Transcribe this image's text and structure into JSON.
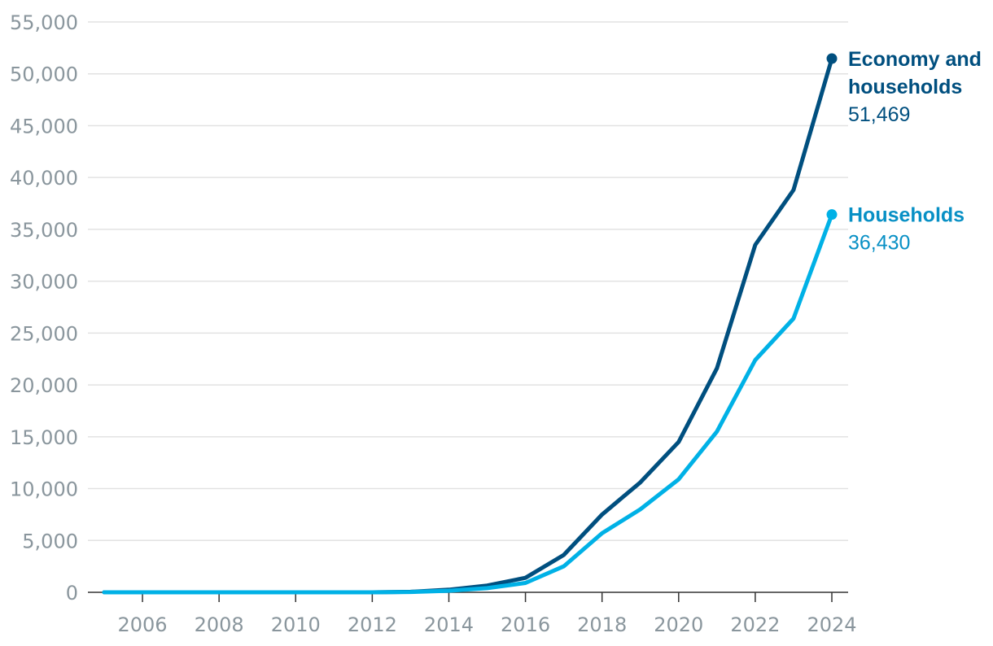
{
  "chart_data": {
    "type": "line",
    "title": "",
    "xlabel": "",
    "ylabel": "",
    "x": [
      2005,
      2006,
      2007,
      2008,
      2009,
      2010,
      2011,
      2012,
      2013,
      2014,
      2015,
      2016,
      2017,
      2018,
      2019,
      2020,
      2021,
      2022,
      2023,
      2024
    ],
    "xticks": [
      "2006",
      "2008",
      "2010",
      "2012",
      "2014",
      "2016",
      "2018",
      "2020",
      "2022",
      "2024"
    ],
    "yticks": [
      "0",
      "5,000",
      "10,000",
      "15,000",
      "20,000",
      "25,000",
      "30,000",
      "35,000",
      "40,000",
      "45,000",
      "50,000",
      "55,000"
    ],
    "ylim": [
      0,
      55000
    ],
    "xlim": [
      2005,
      2024
    ],
    "grid": true,
    "series": [
      {
        "name": "Economy and households",
        "name_lines": [
          "Economy and",
          "households"
        ],
        "end_label": "51,469",
        "color": "#004f7f",
        "values": [
          0,
          0,
          0,
          0,
          0,
          0,
          0,
          0,
          50,
          250,
          650,
          1400,
          3600,
          7500,
          10600,
          14500,
          21600,
          33500,
          38800,
          51469
        ]
      },
      {
        "name": "Households",
        "name_lines": [
          "Households"
        ],
        "end_label": "36,430",
        "color": "#00b1e6",
        "values": [
          0,
          0,
          0,
          0,
          0,
          0,
          0,
          0,
          30,
          150,
          400,
          900,
          2500,
          5700,
          8000,
          10900,
          15500,
          22400,
          26400,
          36430
        ]
      }
    ]
  }
}
